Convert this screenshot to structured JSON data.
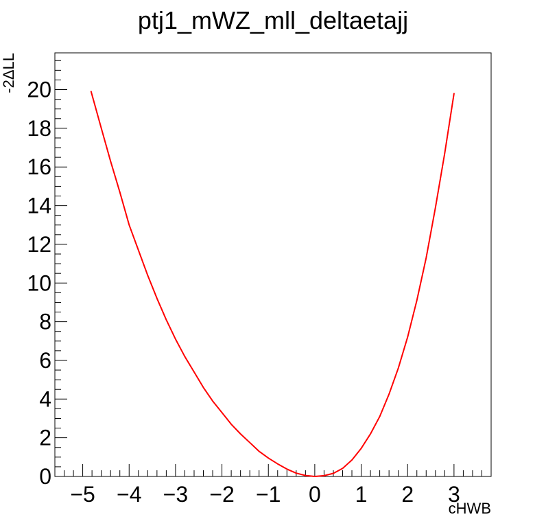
{
  "chart_data": {
    "type": "line",
    "title": "ptj1_mWZ_mll_deltaetajj",
    "xlabel": "cHWB",
    "ylabel": "-2ΔLL",
    "xlim": [
      -5.6,
      3.8
    ],
    "ylim": [
      0,
      21.9
    ],
    "x_ticks": [
      -5,
      -4,
      -3,
      -2,
      -1,
      0,
      1,
      2,
      3
    ],
    "x_tick_labels": [
      "−5",
      "−4",
      "−3",
      "−2",
      "−1",
      "0",
      "1",
      "2",
      "3"
    ],
    "y_ticks": [
      0,
      2,
      4,
      6,
      8,
      10,
      12,
      14,
      16,
      18,
      20
    ],
    "y_tick_labels": [
      "0",
      "2",
      "4",
      "6",
      "8",
      "10",
      "12",
      "14",
      "16",
      "18",
      "20"
    ],
    "grid": false,
    "legend": "none",
    "series": [
      {
        "color": "#ff0000",
        "x": [
          -4.82,
          -4.6,
          -4.4,
          -4.2,
          -4.0,
          -3.8,
          -3.6,
          -3.4,
          -3.2,
          -3.0,
          -2.8,
          -2.6,
          -2.4,
          -2.2,
          -2.0,
          -1.8,
          -1.6,
          -1.4,
          -1.2,
          -1.0,
          -0.8,
          -0.6,
          -0.4,
          -0.2,
          0.0,
          0.2,
          0.4,
          0.6,
          0.8,
          1.0,
          1.2,
          1.4,
          1.6,
          1.8,
          2.0,
          2.2,
          2.4,
          2.6,
          2.8,
          3.0
        ],
        "y": [
          19.9,
          18.0,
          16.3,
          14.7,
          13.0,
          11.7,
          10.4,
          9.2,
          8.1,
          7.1,
          6.2,
          5.4,
          4.6,
          3.9,
          3.3,
          2.7,
          2.2,
          1.75,
          1.3,
          0.95,
          0.65,
          0.38,
          0.17,
          0.05,
          0.0,
          0.04,
          0.16,
          0.42,
          0.85,
          1.45,
          2.2,
          3.1,
          4.25,
          5.6,
          7.2,
          9.1,
          11.3,
          13.9,
          16.7,
          19.8
        ]
      }
    ]
  }
}
